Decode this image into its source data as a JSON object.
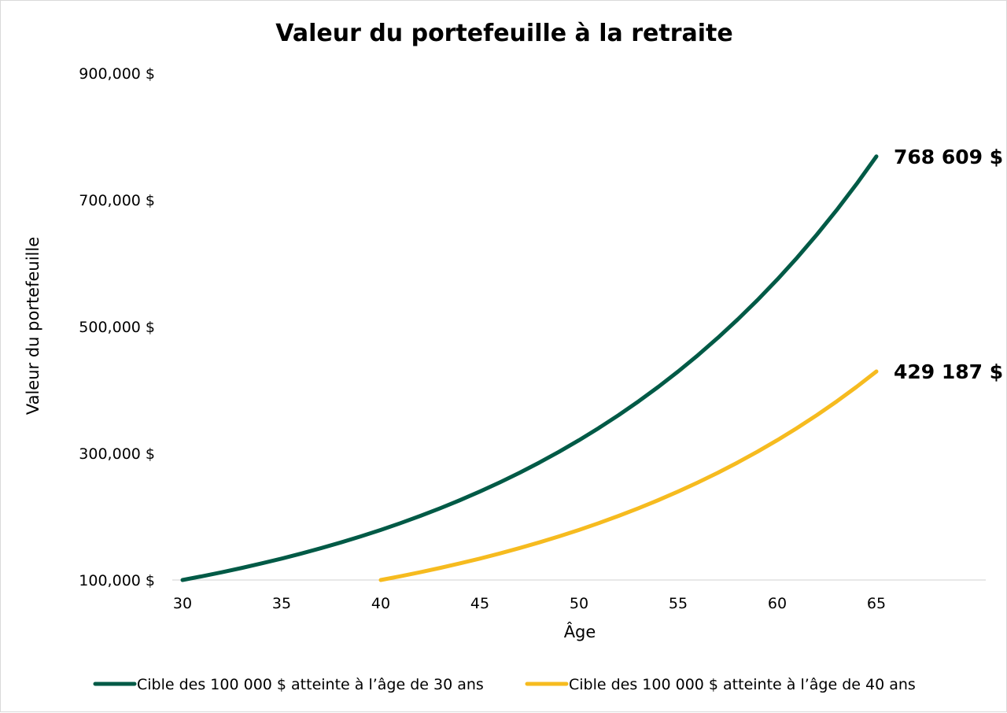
{
  "chart_data": {
    "type": "line",
    "title": "Valeur du portefeuille à la retraite",
    "xlabel": "Âge",
    "ylabel": "Valeur du portefeuille",
    "x_ticks": [
      30,
      35,
      40,
      45,
      50,
      55,
      60,
      65
    ],
    "y_ticks": [
      100000,
      300000,
      500000,
      700000,
      900000
    ],
    "y_tick_labels": [
      "100,000 $",
      "300,000 $",
      "500,000 $",
      "700,000 $",
      "900,000 $"
    ],
    "xlim": [
      30,
      70
    ],
    "ylim": [
      100000,
      900000
    ],
    "grid": false,
    "legend_position": "bottom",
    "series": [
      {
        "name": "Cible des 100 000 $ atteinte à l’âge de 30 ans",
        "color": "#005a46",
        "end_label": "768 609 $",
        "x": [
          30,
          31,
          32,
          33,
          34,
          35,
          36,
          37,
          38,
          39,
          40,
          41,
          42,
          43,
          44,
          45,
          46,
          47,
          48,
          49,
          50,
          51,
          52,
          53,
          54,
          55,
          56,
          57,
          58,
          59,
          60,
          61,
          62,
          63,
          64,
          65
        ],
        "values": [
          100000,
          106000,
          112360,
          119102,
          126248,
          133823,
          141852,
          150363,
          159385,
          168948,
          179085,
          189830,
          201220,
          213293,
          226090,
          239656,
          254035,
          269277,
          285434,
          302560,
          320714,
          339956,
          360354,
          381975,
          404893,
          429187,
          454938,
          482234,
          511168,
          541838,
          574349,
          608810,
          645339,
          684059,
          725102,
          768609
        ]
      },
      {
        "name": "Cible des 100 000 $ atteinte à l’âge de 40 ans",
        "color": "#f6bb1f",
        "end_label": "429 187 $",
        "x": [
          40,
          41,
          42,
          43,
          44,
          45,
          46,
          47,
          48,
          49,
          50,
          51,
          52,
          53,
          54,
          55,
          56,
          57,
          58,
          59,
          60,
          61,
          62,
          63,
          64,
          65
        ],
        "values": [
          100000,
          106000,
          112360,
          119102,
          126248,
          133823,
          141852,
          150363,
          159385,
          168948,
          179085,
          189830,
          201220,
          213293,
          226090,
          239656,
          254035,
          269277,
          285434,
          302560,
          320714,
          339956,
          360354,
          381975,
          404893,
          429187
        ]
      }
    ]
  }
}
